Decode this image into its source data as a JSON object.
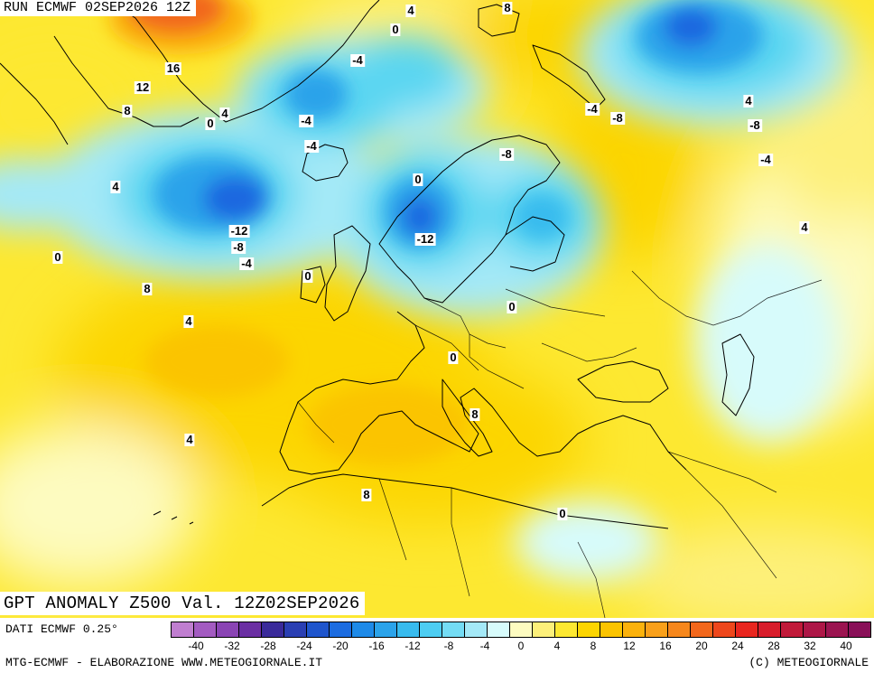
{
  "header": {
    "run_title": "RUN ECMWF 02SEP2026 12Z"
  },
  "map": {
    "title": "GPT ANOMALY Z500 Val. 12Z02SEP2026",
    "field": "Z500 geopotential anomaly",
    "contour_labels": [
      "4",
      "8",
      "0",
      "-4",
      "16",
      "12",
      "8",
      "0",
      "4",
      "-4",
      "-8",
      "-4",
      "-4",
      "4",
      "4",
      "-8",
      "-4",
      "0",
      "-8",
      "-12",
      "-12",
      "-8",
      "-4",
      "0",
      "0",
      "0",
      "4",
      "8",
      "4",
      "0",
      "8",
      "4",
      "8",
      "0"
    ],
    "colors": {
      "neutral_pale": "#fdfbc0",
      "positive_yellow": "#fde831",
      "positive_gold": "#fcd500",
      "positive_orange": "#fbb20c",
      "positive_red": "#f2671c",
      "negative_pale": "#d7fbfb",
      "negative_cyan": "#5ad6f1",
      "negative_sky": "#2ba3ea",
      "negative_blue": "#1f68e0",
      "coastline": "#000000"
    }
  },
  "legend": {
    "data_source": "DATI ECMWF 0.25°",
    "ticks": [
      "-40",
      "-32",
      "-28",
      "-24",
      "-20",
      "-16",
      "-12",
      "-8",
      "-4",
      "0",
      "4",
      "8",
      "12",
      "16",
      "20",
      "24",
      "28",
      "32",
      "40"
    ],
    "swatch_colors": [
      "#c07ed0",
      "#a35bc1",
      "#8a44b4",
      "#6b2fa3",
      "#3a2a9a",
      "#2a3fb3",
      "#1f55cc",
      "#1c6ce0",
      "#1e8ae8",
      "#2ba3ea",
      "#38bbee",
      "#4dcdf2",
      "#74dcf4",
      "#a4e9f7",
      "#d7fbfb",
      "#fdfbc0",
      "#fdf07a",
      "#fde831",
      "#fcd500",
      "#fbc400",
      "#fbb20c",
      "#f9a01a",
      "#f6871c",
      "#f2671c",
      "#ee471c",
      "#e9261f",
      "#d81d2b",
      "#c11a3a",
      "#ad1747",
      "#9b1450",
      "#891058"
    ]
  },
  "footer": {
    "credit_left": "MTG-ECMWF - ELABORAZIONE WWW.METEOGIORNALE.IT",
    "credit_right": "(C) METEOGIORNALE"
  }
}
